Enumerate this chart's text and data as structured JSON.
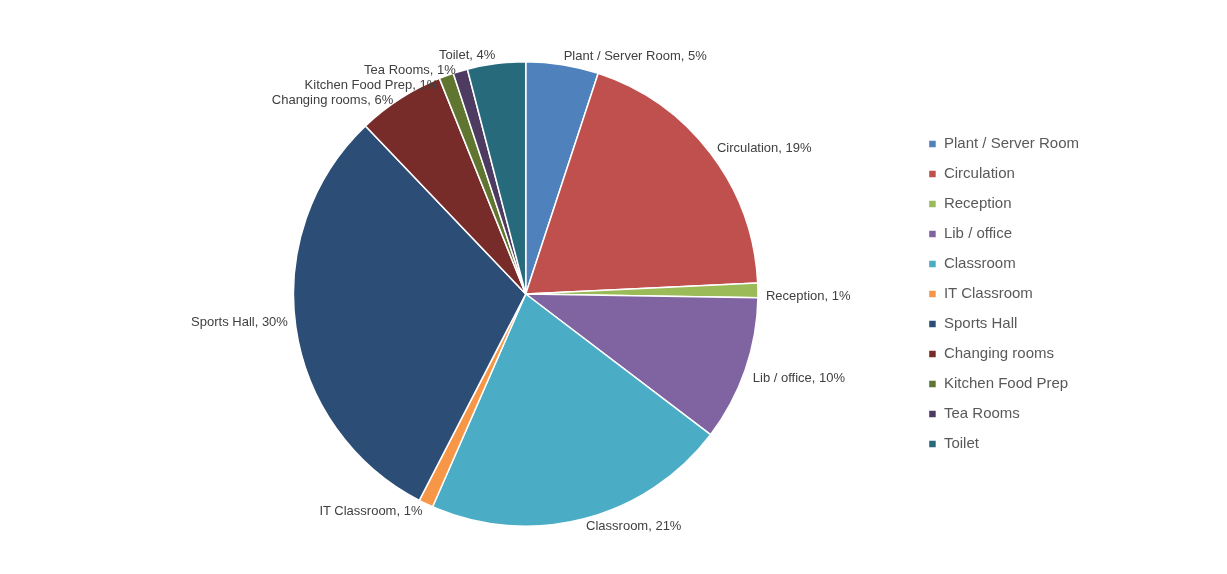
{
  "chart_data": {
    "type": "pie",
    "categories": [
      "Plant / Server Room",
      "Circulation",
      "Reception",
      "Lib / office",
      "Classroom",
      "IT Classroom",
      "Sports Hall",
      "Changing rooms",
      "Kitchen Food Prep",
      "Tea Rooms",
      "Toilet"
    ],
    "values": [
      5,
      19,
      1,
      10,
      21,
      1,
      30,
      6,
      1,
      1,
      4
    ],
    "colors": [
      "#4f81bd",
      "#c0504d",
      "#9bbb59",
      "#8064a2",
      "#4bacc6",
      "#f79646",
      "#2c4d75",
      "#772c2a",
      "#5f7530",
      "#4d3b62",
      "#276a7c"
    ],
    "value_labels": [
      "Plant / Server Room, 5%",
      "Circulation, 19%",
      "Reception, 1%",
      "Lib / office, 10%",
      "Classroom, 21%",
      "IT Classroom, 1%",
      "Sports Hall, 30%",
      "Changing rooms, 6%",
      "Kitchen Food Prep, 1%",
      "Tea Rooms, 1%",
      "Toilet, 4%"
    ],
    "legend": "right"
  }
}
